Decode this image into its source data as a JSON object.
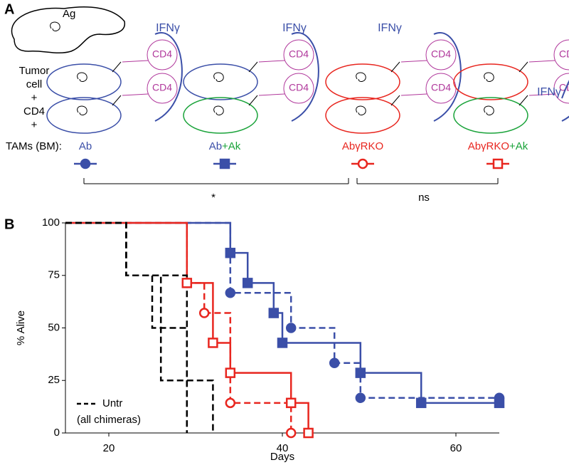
{
  "panel_a": {
    "label": "A",
    "antigen": "Ag",
    "cytokine": "IFNγ",
    "cell_marker": "CD4",
    "legend_lines": [
      "Tumor",
      "cell",
      "+",
      "CD4",
      "+"
    ],
    "legend_last": "TAMs (BM):",
    "conditions": [
      {
        "parts": [
          "Ab"
        ],
        "colors": [
          "#3b4fa8"
        ]
      },
      {
        "parts": [
          "Ab",
          "+Ak"
        ],
        "colors": [
          "#3b4fa8",
          "#1aa33a"
        ]
      },
      {
        "parts": [
          "AbγRKO"
        ],
        "colors": [
          "#e8261f"
        ]
      },
      {
        "parts": [
          "AbγRKO",
          "+Ak"
        ],
        "colors": [
          "#e8261f",
          "#1aa33a"
        ]
      }
    ],
    "significance": [
      "*",
      "ns"
    ]
  },
  "panel_b": {
    "label": "B"
  },
  "chart_data": {
    "type": "step",
    "xlabel": "Days",
    "ylabel": "% Alive",
    "xlim": [
      15,
      65
    ],
    "ylim": [
      0,
      100
    ],
    "xticks": [
      20,
      40,
      60
    ],
    "yticks": [
      0,
      25,
      50,
      75,
      100
    ],
    "legend": [
      "Untr",
      "(all chimeras)"
    ],
    "series": [
      {
        "color": "#3b4fa8",
        "dashed": true,
        "marker": "circle",
        "filled": true,
        "x": [
          15,
          34,
          41,
          46,
          49,
          65
        ],
        "values": [
          100,
          66.7,
          50,
          33.3,
          16.7,
          16.7
        ]
      },
      {
        "color": "#3b4fa8",
        "dashed": false,
        "marker": "square",
        "filled": true,
        "x": [
          15,
          34,
          36,
          39,
          40,
          49,
          56,
          65
        ],
        "values": [
          100,
          85.7,
          71.4,
          57.1,
          42.9,
          28.6,
          14.3,
          14.3
        ]
      },
      {
        "color": "#e8261f",
        "dashed": true,
        "marker": "circle",
        "filled": false,
        "x": [
          15,
          29,
          31,
          34,
          41
        ],
        "values": [
          100,
          71.4,
          57.1,
          14.3,
          0
        ]
      },
      {
        "color": "#e8261f",
        "dashed": false,
        "marker": "square",
        "filled": false,
        "x": [
          15,
          29,
          32,
          34,
          41,
          43
        ],
        "values": [
          100,
          71.4,
          42.9,
          28.6,
          14.3,
          0
        ]
      },
      {
        "color": "#000000",
        "dashed": true,
        "x": [
          15,
          22,
          29
        ],
        "values": [
          100,
          75,
          0
        ]
      },
      {
        "color": "#000000",
        "dashed": true,
        "x": [
          15,
          22,
          25,
          29
        ],
        "values": [
          100,
          75,
          50,
          0
        ]
      },
      {
        "color": "#000000",
        "dashed": true,
        "x": [
          15,
          22,
          26,
          32
        ],
        "values": [
          100,
          75,
          25,
          0
        ]
      }
    ]
  }
}
